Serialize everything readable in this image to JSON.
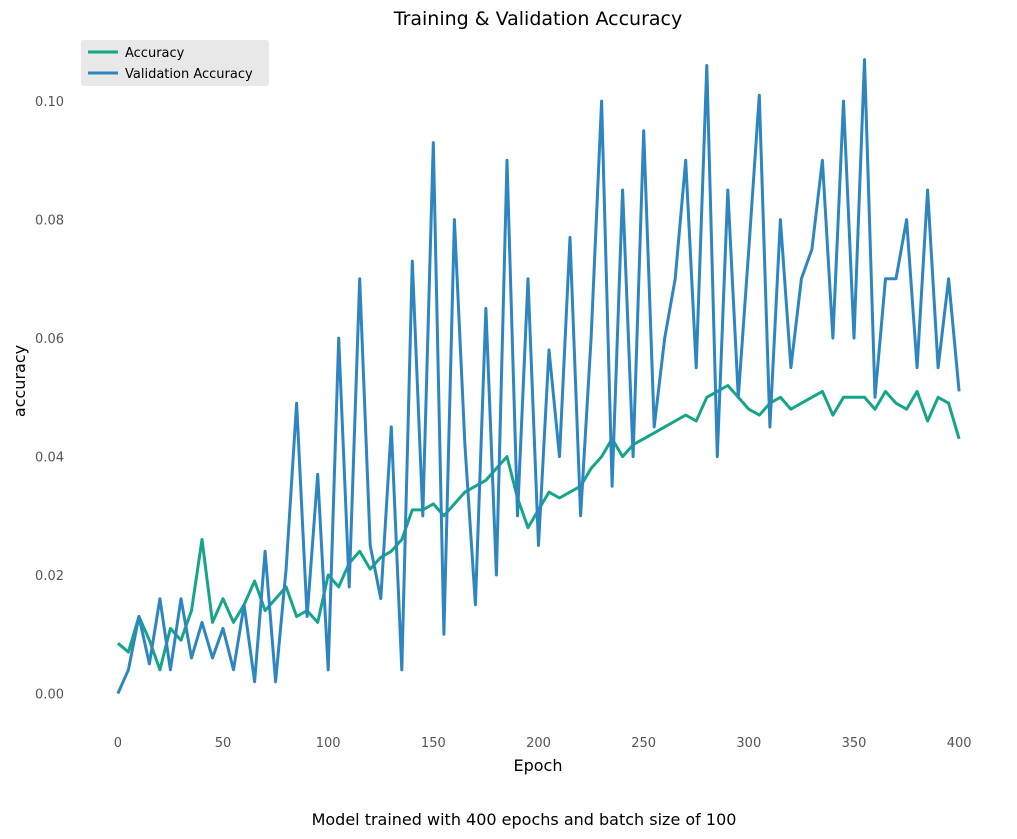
{
  "chart_data": {
    "type": "line",
    "title": "Training & Validation Accuracy",
    "xlabel": "Epoch",
    "ylabel": "accuracy",
    "caption": "Model trained with 400 epochs and batch size of 100",
    "xlim": [
      -18,
      418
    ],
    "ylim": [
      -0.007,
      0.112
    ],
    "xticks": [
      0,
      50,
      100,
      150,
      200,
      250,
      300,
      350,
      400
    ],
    "yticks": [
      0.0,
      0.02,
      0.04,
      0.06,
      0.08,
      0.1
    ],
    "ytick_labels": [
      "0.00",
      "0.02",
      "0.04",
      "0.06",
      "0.08",
      "0.10"
    ],
    "grid": false,
    "legend_position": "top-left",
    "series": [
      {
        "name": "Accuracy",
        "color": "#17a589",
        "x": [
          0,
          5,
          10,
          15,
          20,
          25,
          30,
          35,
          40,
          45,
          50,
          55,
          60,
          65,
          70,
          75,
          80,
          85,
          90,
          95,
          100,
          105,
          110,
          115,
          120,
          125,
          130,
          135,
          140,
          145,
          150,
          155,
          160,
          165,
          170,
          175,
          180,
          185,
          190,
          195,
          200,
          205,
          210,
          215,
          220,
          225,
          230,
          235,
          240,
          245,
          250,
          255,
          260,
          265,
          270,
          275,
          280,
          285,
          290,
          295,
          300,
          305,
          310,
          315,
          320,
          325,
          330,
          335,
          340,
          345,
          350,
          355,
          360,
          365,
          370,
          375,
          380,
          385,
          390,
          395,
          400
        ],
        "y": [
          0.0085,
          0.007,
          0.013,
          0.009,
          0.004,
          0.011,
          0.009,
          0.014,
          0.026,
          0.012,
          0.016,
          0.012,
          0.015,
          0.019,
          0.014,
          0.016,
          0.018,
          0.013,
          0.014,
          0.012,
          0.02,
          0.018,
          0.022,
          0.024,
          0.021,
          0.023,
          0.024,
          0.026,
          0.031,
          0.031,
          0.032,
          0.03,
          0.032,
          0.034,
          0.035,
          0.036,
          0.038,
          0.04,
          0.033,
          0.028,
          0.031,
          0.034,
          0.033,
          0.034,
          0.035,
          0.038,
          0.04,
          0.043,
          0.04,
          0.042,
          0.043,
          0.044,
          0.045,
          0.046,
          0.047,
          0.046,
          0.05,
          0.051,
          0.052,
          0.05,
          0.048,
          0.047,
          0.049,
          0.05,
          0.048,
          0.049,
          0.05,
          0.051,
          0.047,
          0.05,
          0.05,
          0.05,
          0.048,
          0.051,
          0.049,
          0.048,
          0.051,
          0.046,
          0.05,
          0.049,
          0.043
        ]
      },
      {
        "name": "Validation Accuracy",
        "color": "#2e86c1",
        "x": [
          0,
          5,
          10,
          15,
          20,
          25,
          30,
          35,
          40,
          45,
          50,
          55,
          60,
          65,
          70,
          75,
          80,
          85,
          90,
          95,
          100,
          105,
          110,
          115,
          120,
          125,
          130,
          135,
          140,
          145,
          150,
          155,
          160,
          165,
          170,
          175,
          180,
          185,
          190,
          195,
          200,
          205,
          210,
          215,
          220,
          225,
          230,
          235,
          240,
          245,
          250,
          255,
          260,
          265,
          270,
          275,
          280,
          285,
          290,
          295,
          300,
          305,
          310,
          315,
          320,
          325,
          330,
          335,
          340,
          345,
          350,
          355,
          360,
          365,
          370,
          375,
          380,
          385,
          390,
          395,
          400
        ],
        "y": [
          0.0,
          0.004,
          0.013,
          0.005,
          0.016,
          0.004,
          0.016,
          0.006,
          0.012,
          0.006,
          0.011,
          0.004,
          0.015,
          0.002,
          0.024,
          0.002,
          0.021,
          0.049,
          0.013,
          0.037,
          0.004,
          0.06,
          0.018,
          0.07,
          0.025,
          0.016,
          0.045,
          0.004,
          0.073,
          0.03,
          0.093,
          0.01,
          0.08,
          0.042,
          0.015,
          0.065,
          0.02,
          0.09,
          0.03,
          0.07,
          0.025,
          0.058,
          0.04,
          0.077,
          0.03,
          0.06,
          0.1,
          0.035,
          0.085,
          0.04,
          0.095,
          0.045,
          0.06,
          0.07,
          0.09,
          0.055,
          0.106,
          0.04,
          0.085,
          0.05,
          0.075,
          0.101,
          0.045,
          0.08,
          0.055,
          0.07,
          0.075,
          0.09,
          0.06,
          0.1,
          0.06,
          0.107,
          0.05,
          0.07,
          0.07,
          0.08,
          0.055,
          0.085,
          0.055,
          0.07,
          0.051
        ]
      }
    ]
  }
}
